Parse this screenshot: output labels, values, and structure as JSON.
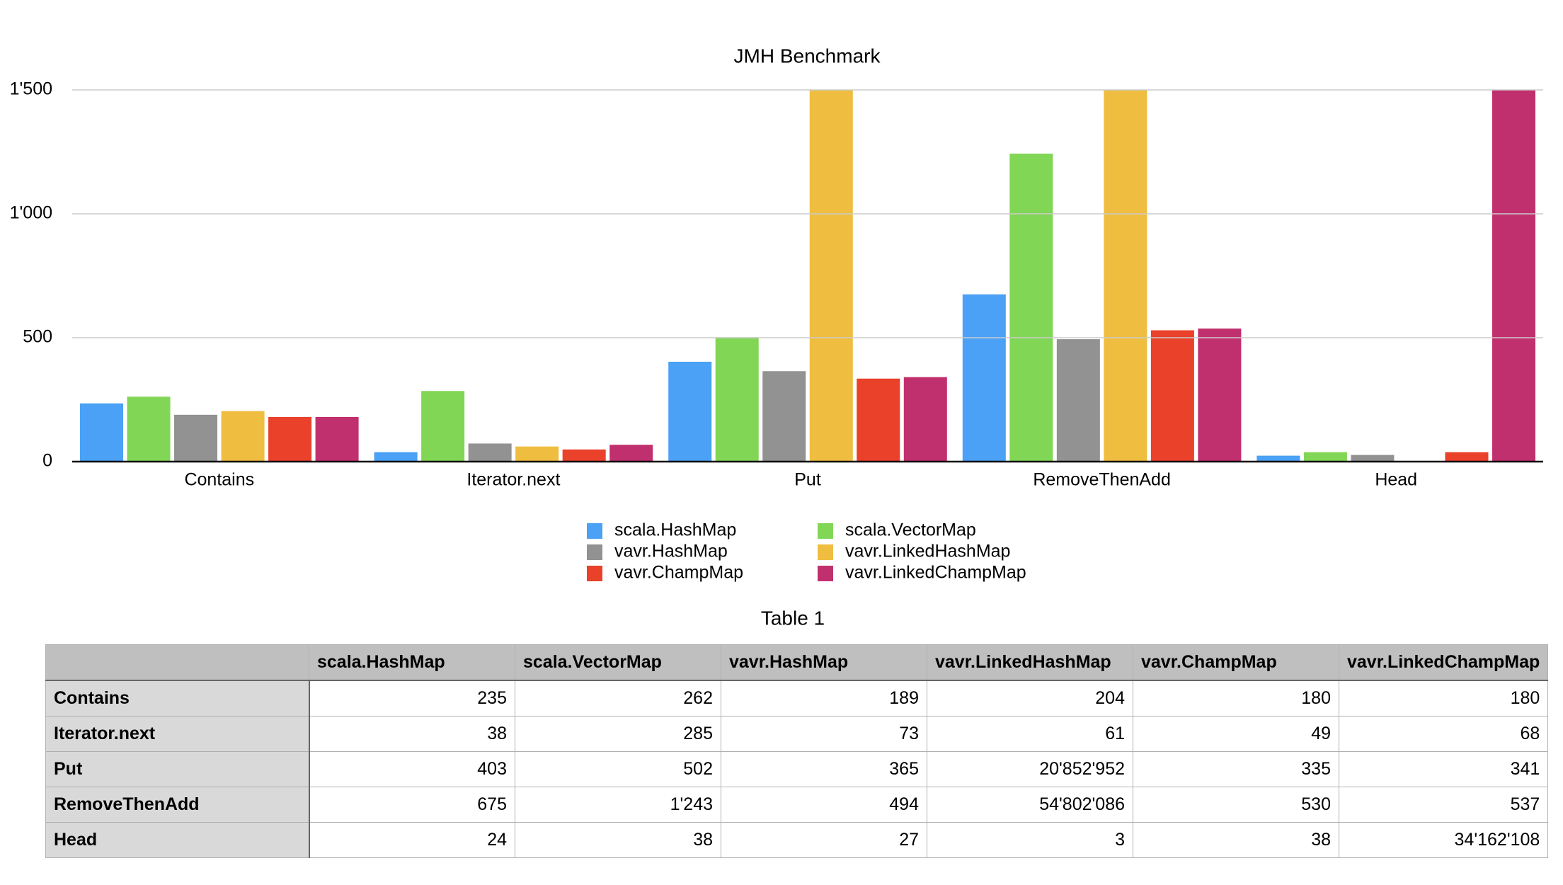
{
  "chart_data": {
    "type": "bar",
    "title": "JMH Benchmark",
    "categories": [
      "Contains",
      "Iterator.next",
      "Put",
      "RemoveThenAdd",
      "Head"
    ],
    "ylim": [
      0,
      1500
    ],
    "yticks": [
      0,
      500,
      {
        "value": 1000,
        "label": "1'000"
      },
      {
        "value": 1500,
        "label": "1'500"
      }
    ],
    "grid": true,
    "series": [
      {
        "name": "scala.HashMap",
        "color": "#4aa1f5",
        "values": [
          235,
          38,
          403,
          675,
          24
        ],
        "value_labels": [
          "235",
          "38",
          "403",
          "675",
          "24"
        ]
      },
      {
        "name": "scala.VectorMap",
        "color": "#82d656",
        "values": [
          262,
          285,
          502,
          1243,
          38
        ],
        "value_labels": [
          "262",
          "285",
          "502",
          "1'243",
          "38"
        ]
      },
      {
        "name": "vavr.HashMap",
        "color": "#929292",
        "values": [
          189,
          73,
          365,
          494,
          27
        ],
        "value_labels": [
          "189",
          "73",
          "365",
          "494",
          "27"
        ]
      },
      {
        "name": "vavr.LinkedHashMap",
        "color": "#efbd40",
        "values": [
          204,
          61,
          20852952,
          54802086,
          3
        ],
        "value_labels": [
          "204",
          "61",
          "20'852'952",
          "54'802'086",
          "3"
        ]
      },
      {
        "name": "vavr.ChampMap",
        "color": "#e9412a",
        "values": [
          180,
          49,
          335,
          530,
          38
        ],
        "value_labels": [
          "180",
          "49",
          "335",
          "530",
          "38"
        ]
      },
      {
        "name": "vavr.LinkedChampMap",
        "color": "#c1306e",
        "values": [
          180,
          68,
          341,
          537,
          34162108
        ],
        "value_labels": [
          "180",
          "68",
          "341",
          "537",
          "34'162'108"
        ]
      }
    ],
    "table_title": "Table 1"
  }
}
